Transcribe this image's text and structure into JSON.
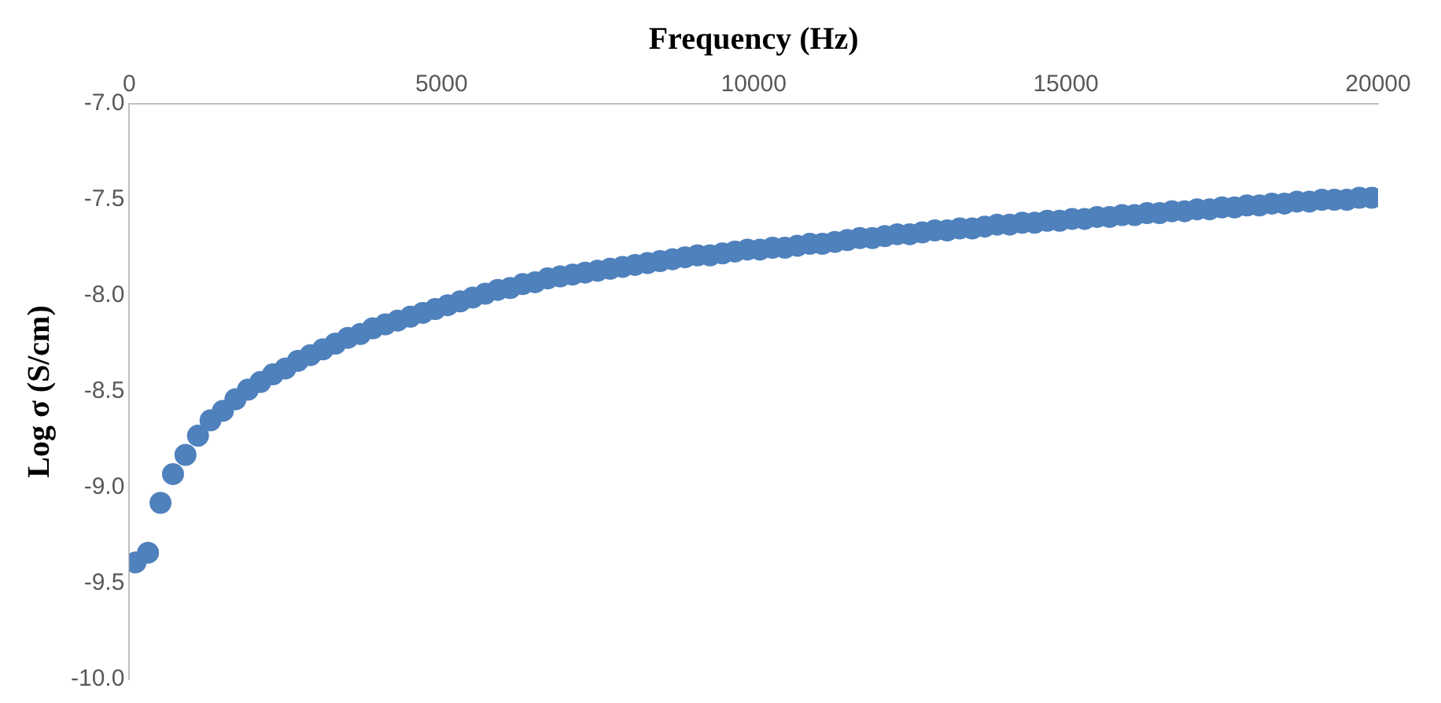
{
  "chart_data": {
    "type": "scatter",
    "xlabel": "Frequency (Hz)",
    "ylabel": "Log σ (S/cm)",
    "x": [
      100,
      300,
      500,
      700,
      900,
      1100,
      1300,
      1500,
      1700,
      1900,
      2100,
      2300,
      2500,
      2700,
      2900,
      3100,
      3300,
      3500,
      3700,
      3900,
      4100,
      4300,
      4500,
      4700,
      4900,
      5100,
      5300,
      5500,
      5700,
      5900,
      6100,
      6300,
      6500,
      6700,
      6900,
      7100,
      7300,
      7500,
      7700,
      7900,
      8100,
      8300,
      8500,
      8700,
      8900,
      9100,
      9300,
      9500,
      9700,
      9900,
      10100,
      10300,
      10500,
      10700,
      10900,
      11100,
      11300,
      11500,
      11700,
      11900,
      12100,
      12300,
      12500,
      12700,
      12900,
      13100,
      13300,
      13500,
      13700,
      13900,
      14100,
      14300,
      14500,
      14700,
      14900,
      15100,
      15300,
      15500,
      15700,
      15900,
      16100,
      16300,
      16500,
      16700,
      16900,
      17100,
      17300,
      17500,
      17700,
      17900,
      18100,
      18300,
      18500,
      18700,
      18900,
      19100,
      19300,
      19500,
      19700,
      19900
    ],
    "series": [
      {
        "color": "#4f81bd",
        "values": [
          -9.39,
          -9.34,
          -9.08,
          -8.93,
          -8.83,
          -8.73,
          -8.65,
          -8.6,
          -8.54,
          -8.49,
          -8.45,
          -8.41,
          -8.38,
          -8.34,
          -8.31,
          -8.28,
          -8.25,
          -8.22,
          -8.2,
          -8.17,
          -8.15,
          -8.13,
          -8.11,
          -8.09,
          -8.07,
          -8.05,
          -8.03,
          -8.01,
          -7.99,
          -7.97,
          -7.96,
          -7.94,
          -7.93,
          -7.91,
          -7.9,
          -7.89,
          -7.88,
          -7.87,
          -7.86,
          -7.85,
          -7.84,
          -7.83,
          -7.82,
          -7.81,
          -7.8,
          -7.79,
          -7.79,
          -7.78,
          -7.77,
          -7.76,
          -7.76,
          -7.75,
          -7.75,
          -7.74,
          -7.73,
          -7.73,
          -7.72,
          -7.71,
          -7.7,
          -7.7,
          -7.69,
          -7.68,
          -7.68,
          -7.67,
          -7.66,
          -7.66,
          -7.65,
          -7.65,
          -7.64,
          -7.63,
          -7.63,
          -7.62,
          -7.62,
          -7.61,
          -7.61,
          -7.6,
          -7.6,
          -7.59,
          -7.59,
          -7.58,
          -7.58,
          -7.57,
          -7.57,
          -7.56,
          -7.56,
          -7.55,
          -7.55,
          -7.54,
          -7.54,
          -7.53,
          -7.53,
          -7.52,
          -7.52,
          -7.51,
          -7.51,
          -7.5,
          -7.5,
          -7.5,
          -7.49,
          -7.49
        ]
      }
    ],
    "xlim": [
      0,
      20000
    ],
    "xticks": [
      0,
      5000,
      10000,
      15000,
      20000
    ],
    "ylim": [
      -10,
      -7
    ],
    "yticks": [
      {
        "value": -7,
        "label": "-7.0"
      },
      -7.5,
      {
        "value": -8,
        "label": "-8.0"
      },
      -8.5,
      {
        "value": -9,
        "label": "-9.0"
      },
      -9.5,
      {
        "value": -10,
        "label": "-10.0"
      }
    ],
    "grid": false,
    "legend": false,
    "marker": "circle"
  }
}
